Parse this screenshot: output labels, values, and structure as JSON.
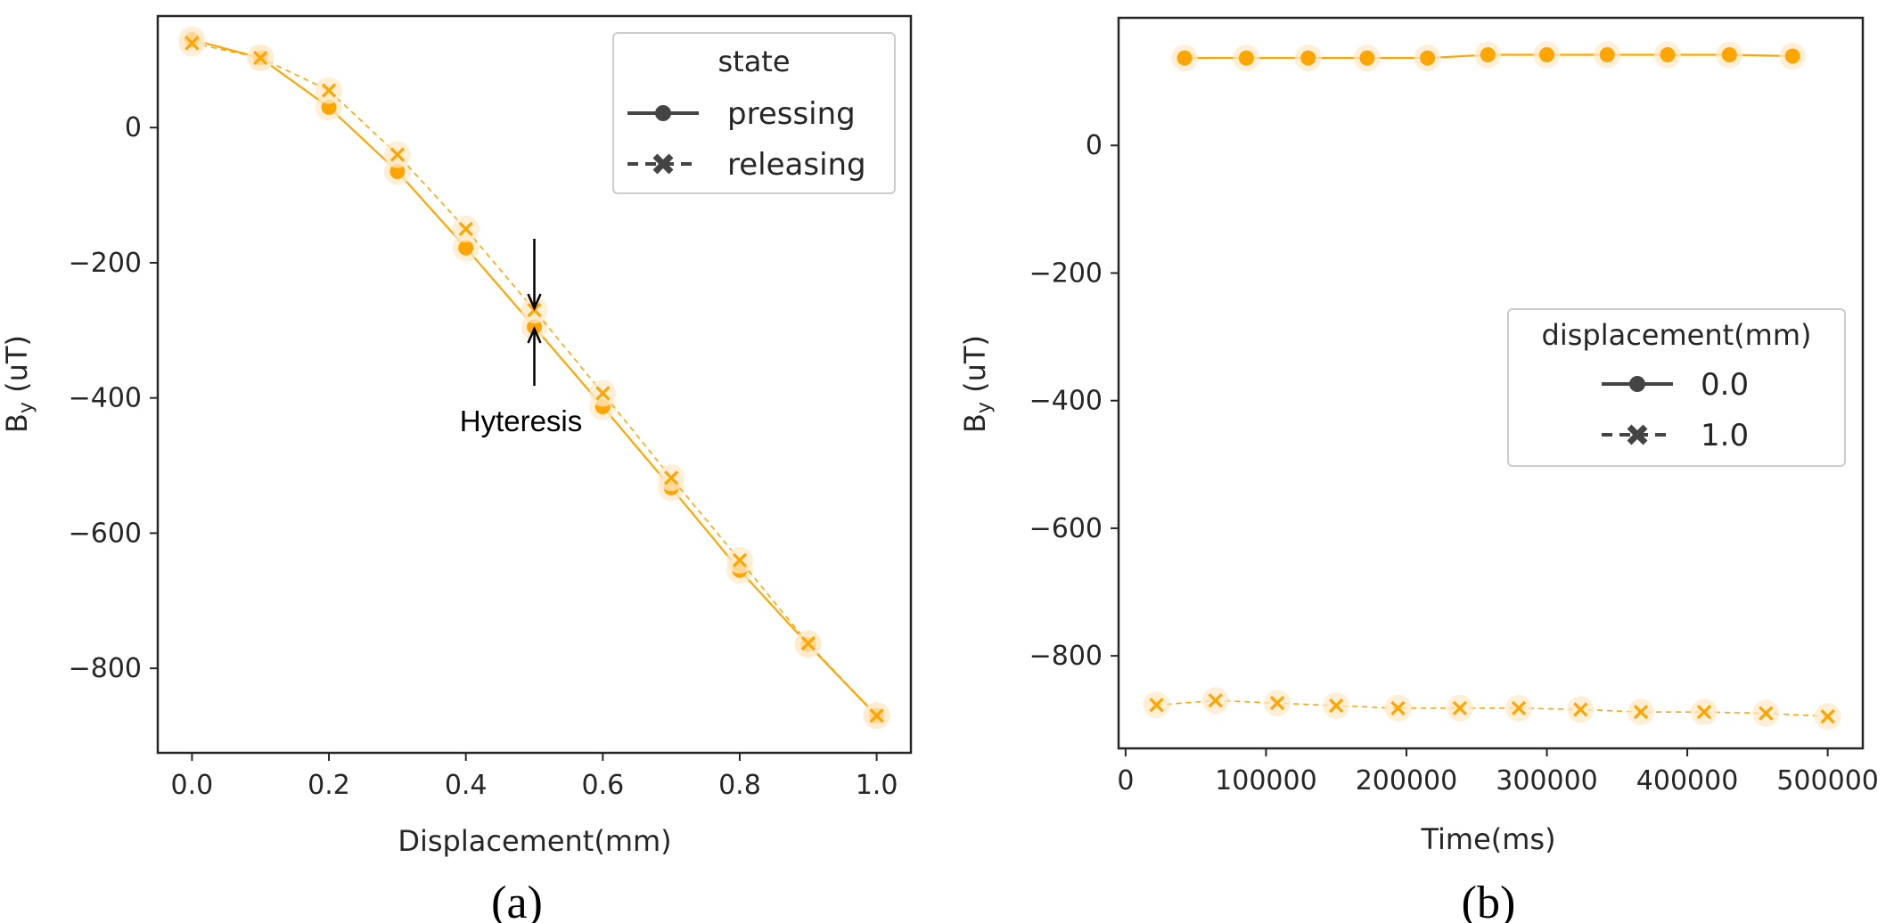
{
  "colors": {
    "series": "#ffa500",
    "halo": "#ffe9c9",
    "axis": "#262626",
    "legend_line": "#444444",
    "legend_border": "#cccccc"
  },
  "chart_data": [
    {
      "type": "line",
      "panel_label": "(a)",
      "xlabel": "Displacement(mm)",
      "ylabel_base": "B",
      "ylabel_sub": "y",
      "ylabel_unit": " (uT)",
      "xlim": [
        -0.05,
        1.05
      ],
      "ylim": [
        -925,
        165
      ],
      "xticks": [
        0.0,
        0.2,
        0.4,
        0.6,
        0.8,
        1.0
      ],
      "xtick_labels": [
        "0.0",
        "0.2",
        "0.4",
        "0.6",
        "0.8",
        "1.0"
      ],
      "yticks": [
        0,
        -200,
        -400,
        -600,
        -800
      ],
      "ytick_labels": [
        "0",
        "−200",
        "−400",
        "−600",
        "−800"
      ],
      "legend": {
        "title": "state",
        "placement": "upper right",
        "entries": [
          "pressing",
          "releasing"
        ]
      },
      "annotation": {
        "text": "Hyteresis",
        "x": 0.5,
        "y_top": -270,
        "y_bottom": -295
      },
      "series": [
        {
          "name": "pressing",
          "marker": "circle",
          "linestyle": "solid",
          "x": [
            0.0,
            0.1,
            0.2,
            0.3,
            0.4,
            0.5,
            0.6,
            0.7,
            0.8,
            0.9,
            1.0
          ],
          "y": [
            130,
            103,
            30,
            -65,
            -178,
            -295,
            -413,
            -533,
            -655,
            -765,
            -870
          ]
        },
        {
          "name": "releasing",
          "marker": "x",
          "linestyle": "dashed",
          "x": [
            0.0,
            0.1,
            0.2,
            0.3,
            0.4,
            0.5,
            0.6,
            0.7,
            0.8,
            0.9,
            1.0
          ],
          "y": [
            125,
            103,
            55,
            -40,
            -150,
            -270,
            -393,
            -518,
            -640,
            -763,
            -870
          ]
        }
      ]
    },
    {
      "type": "line",
      "panel_label": "(b)",
      "xlabel": "Time(ms)",
      "ylabel_base": "B",
      "ylabel_sub": "y",
      "ylabel_unit": " (uT)",
      "xlim": [
        -5000,
        525000
      ],
      "ylim": [
        -945,
        200
      ],
      "xticks": [
        0,
        100000,
        200000,
        300000,
        400000,
        500000
      ],
      "xtick_labels": [
        "0",
        "100000",
        "200000",
        "300000",
        "400000",
        "500000"
      ],
      "yticks": [
        0,
        -200,
        -400,
        -600,
        -800
      ],
      "ytick_labels": [
        "0",
        "−200",
        "−400",
        "−600",
        "−800"
      ],
      "legend": {
        "title": "displacement(mm)",
        "placement": "center right",
        "entries": [
          "0.0",
          "1.0"
        ]
      },
      "series": [
        {
          "name": "0.0",
          "marker": "circle",
          "linestyle": "solid",
          "x": [
            42000,
            86000,
            130000,
            172000,
            215000,
            258000,
            300000,
            343000,
            386000,
            430000,
            475000
          ],
          "y": [
            137,
            137,
            137,
            137,
            137,
            142,
            142,
            142,
            142,
            142,
            140
          ]
        },
        {
          "name": "1.0",
          "marker": "x",
          "linestyle": "dashed",
          "x": [
            22000,
            64000,
            108000,
            150000,
            194000,
            238000,
            280000,
            324000,
            367000,
            412000,
            456000,
            500000
          ],
          "y": [
            -877,
            -870,
            -874,
            -878,
            -882,
            -882,
            -882,
            -884,
            -888,
            -888,
            -890,
            -895
          ]
        }
      ]
    }
  ]
}
